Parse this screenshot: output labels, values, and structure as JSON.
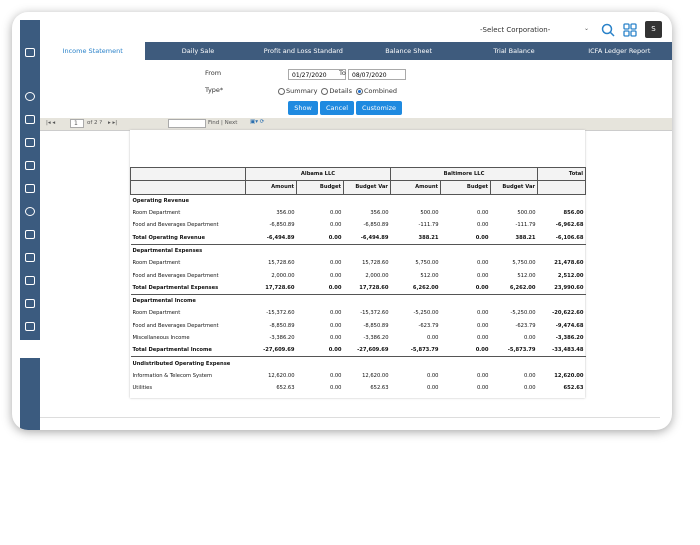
{
  "topbar": {
    "corporation_select": "-Select Corporation-",
    "user_initial": "S"
  },
  "tabs": [
    "Income Statement",
    "Daily Sale",
    "Profit and Loss Standard",
    "Balance Sheet",
    "Trial Balance",
    "ICFA Ledger Report"
  ],
  "form": {
    "from_label": "From",
    "from_date": "01/27/2020",
    "to_label": "To",
    "to_date": "08/07/2020",
    "type_label": "Type*",
    "options": [
      "Summary",
      "Details",
      "Combined"
    ],
    "buttons": [
      "Show",
      "Cancel",
      "Customize"
    ]
  },
  "toolbar": {
    "page": "1",
    "of_pages": "of 2 ?",
    "find": "Find | Next"
  },
  "report": {
    "groups": [
      "Albama LLC",
      "Baltimore LLC",
      "Total"
    ],
    "columns": [
      "Amount",
      "Budget",
      "Budget Var",
      "Amount",
      "Budget",
      "Budget Var"
    ],
    "sections": [
      {
        "heading": "Operating Revenue",
        "rows": [
          {
            "label": "Room Department",
            "values": [
              "356.00",
              "0.00",
              "356.00",
              "500.00",
              "0.00",
              "500.00",
              "856.00"
            ]
          },
          {
            "label": "Food and Beverages Department",
            "values": [
              "-6,850.89",
              "0.00",
              "-6,850.89",
              "-111.79",
              "0.00",
              "-111.79",
              "-6,962.68"
            ]
          }
        ],
        "total": {
          "label": "Total Operating Revenue",
          "values": [
            "-6,494.89",
            "0.00",
            "-6,494.89",
            "388.21",
            "0.00",
            "388.21",
            "-6,106.68"
          ]
        }
      },
      {
        "heading": "Departmental Expenses",
        "rows": [
          {
            "label": "Room Department",
            "values": [
              "15,728.60",
              "0.00",
              "15,728.60",
              "5,750.00",
              "0.00",
              "5,750.00",
              "21,478.60"
            ]
          },
          {
            "label": "Food and Beverages Department",
            "values": [
              "2,000.00",
              "0.00",
              "2,000.00",
              "512.00",
              "0.00",
              "512.00",
              "2,512.00"
            ]
          }
        ],
        "total": {
          "label": "Total Departmental Expenses",
          "values": [
            "17,728.60",
            "0.00",
            "17,728.60",
            "6,262.00",
            "0.00",
            "6,262.00",
            "23,990.60"
          ]
        }
      },
      {
        "heading": "Departmental Income",
        "rows": [
          {
            "label": "Room Department",
            "values": [
              "-15,372.60",
              "0.00",
              "-15,372.60",
              "-5,250.00",
              "0.00",
              "-5,250.00",
              "-20,622.60"
            ]
          },
          {
            "label": "Food and Beverages Department",
            "values": [
              "-8,850.89",
              "0.00",
              "-8,850.89",
              "-623.79",
              "0.00",
              "-623.79",
              "-9,474.68"
            ]
          },
          {
            "label": "Miscellaneous Income",
            "values": [
              "-3,386.20",
              "0.00",
              "-3,386.20",
              "0.00",
              "0.00",
              "0.00",
              "-3,386.20"
            ]
          }
        ],
        "total": {
          "label": "Total Departmental Income",
          "values": [
            "-27,609.69",
            "0.00",
            "-27,609.69",
            "-5,873.79",
            "0.00",
            "-5,873.79",
            "-33,483.48"
          ]
        }
      },
      {
        "heading": "Undistributed Operating Expense",
        "rows": [
          {
            "label": "Information & Telecom System",
            "values": [
              "12,620.00",
              "0.00",
              "12,620.00",
              "0.00",
              "0.00",
              "0.00",
              "12,620.00"
            ]
          },
          {
            "label": "Utilities",
            "values": [
              "652.63",
              "0.00",
              "652.63",
              "0.00",
              "0.00",
              "0.00",
              "652.63"
            ]
          }
        ]
      }
    ]
  }
}
